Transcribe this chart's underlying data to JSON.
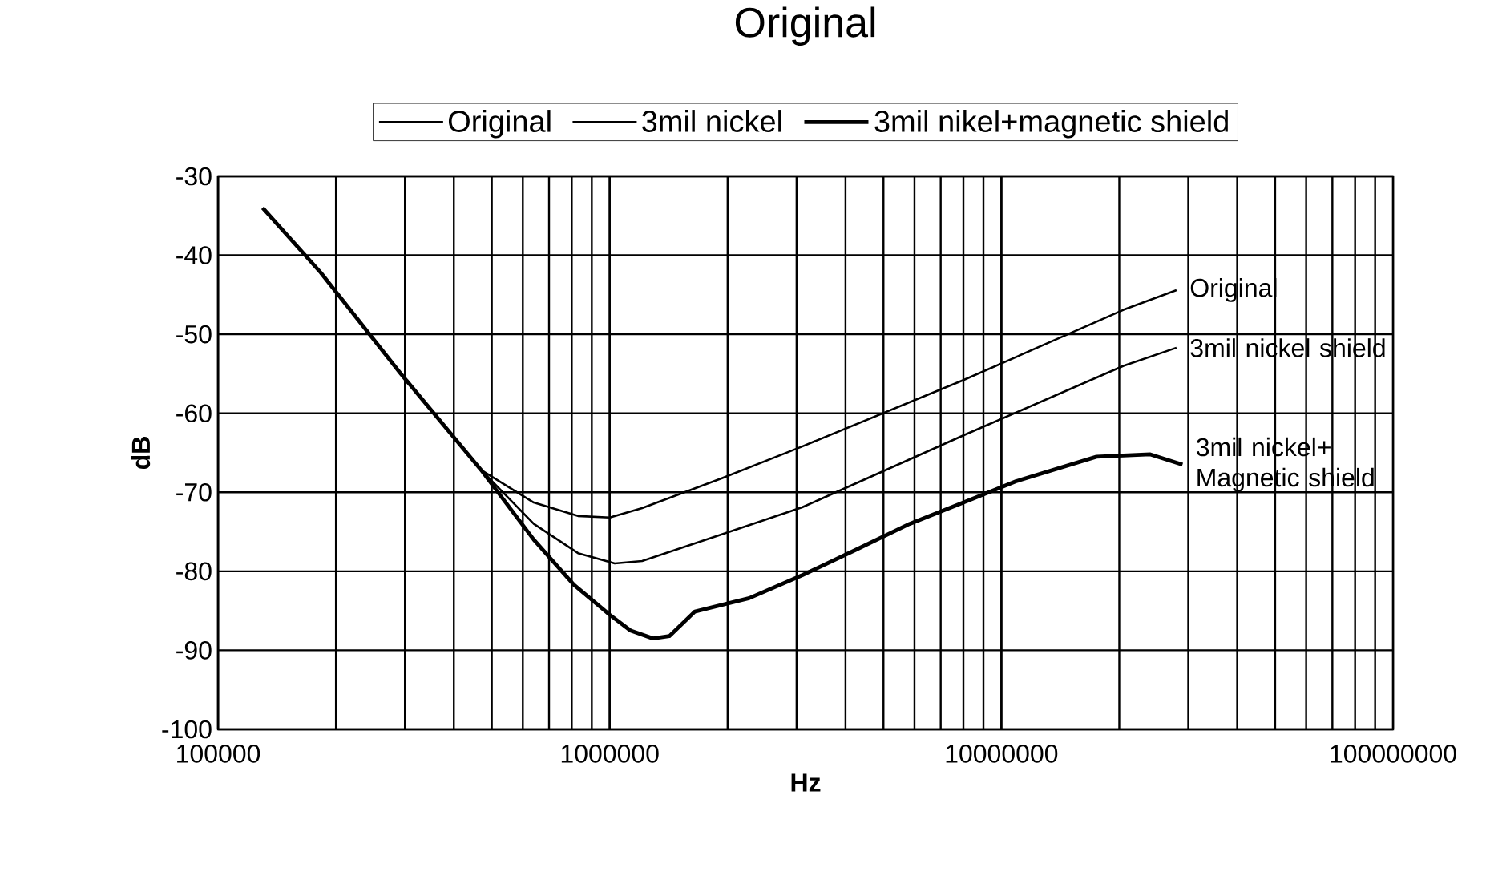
{
  "chart_data": {
    "type": "line",
    "title": "Original",
    "xlabel": "Hz",
    "ylabel": "dB",
    "log": "x",
    "grid": true,
    "legend": "top",
    "line_style": "solid",
    "marker": "none",
    "xlim": [
      100000,
      100000000
    ],
    "xticks": [
      100000,
      1000000,
      10000000,
      100000000
    ],
    "ylim": [
      -100,
      -30
    ],
    "yticks": [
      -100,
      -90,
      -80,
      -70,
      -60,
      -50,
      -40,
      -30
    ],
    "series": [
      {
        "name": "Original",
        "color": "#000000",
        "x": [
          130000,
          183000,
          293000,
          470000,
          640000,
          830000,
          1000000,
          1210000,
          1940000,
          3100000,
          8000000,
          20500000,
          28000000
        ],
        "values": [
          -34,
          -42.2,
          -55.0,
          -67.2,
          -71.3,
          -73.0,
          -73.2,
          -72.0,
          -68.2,
          -64.2,
          -55.8,
          -46.9,
          -44.4
        ]
      },
      {
        "name": "3mil nickel",
        "color": "#000000",
        "x": [
          130000,
          183000,
          293000,
          470000,
          640000,
          830000,
          1030000,
          1210000,
          1940000,
          3100000,
          8000000,
          20500000,
          28000000
        ],
        "values": [
          -34,
          -42.2,
          -55.0,
          -67.2,
          -74.0,
          -77.7,
          -79.0,
          -78.7,
          -75.3,
          -71.9,
          -62.8,
          -54.0,
          -51.7
        ]
      },
      {
        "name": "3mil nikel+magnetic shield",
        "color": "#000000",
        "x": [
          130000,
          183000,
          293000,
          470000,
          640000,
          810000,
          1000000,
          1130000,
          1290000,
          1420000,
          1650000,
          2270000,
          3100000,
          4240000,
          5830000,
          8000000,
          10900000,
          17500000,
          24000000,
          29000000
        ],
        "values": [
          -34,
          -42.2,
          -55.0,
          -67.2,
          -76.0,
          -81.7,
          -85.5,
          -87.5,
          -88.5,
          -88.2,
          -85.1,
          -83.4,
          -80.5,
          -77.3,
          -74.0,
          -71.3,
          -68.6,
          -65.5,
          -65.2,
          -66.5
        ]
      }
    ],
    "annotations": [
      "Original",
      "3mil nickel shield",
      "3mil nickel+ Magnetic shield"
    ]
  }
}
